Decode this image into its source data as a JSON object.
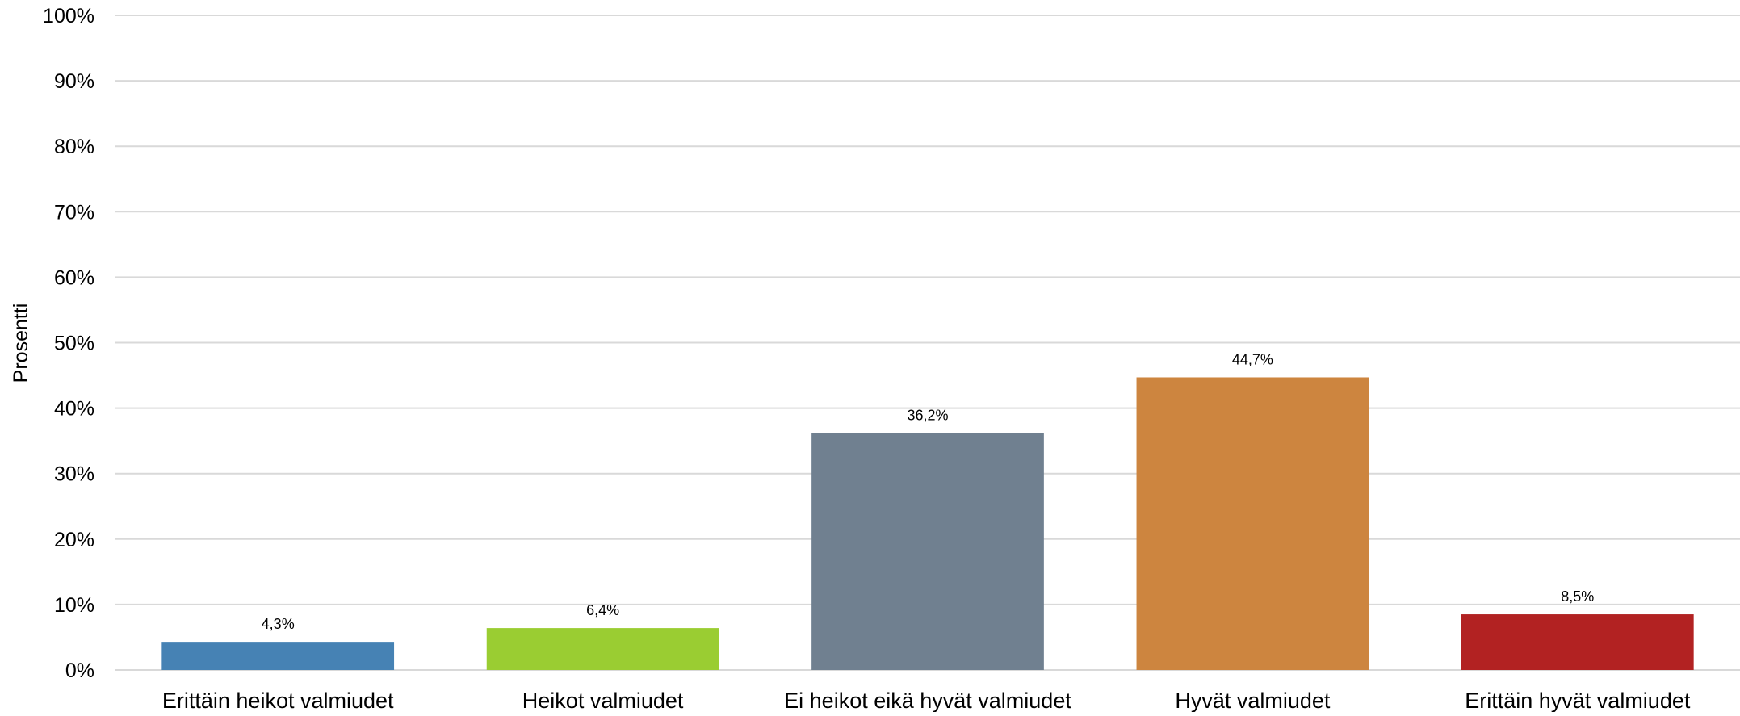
{
  "chart_data": {
    "type": "bar",
    "title": "",
    "xlabel": "",
    "ylabel": "Prosentti",
    "ylim": [
      0,
      100
    ],
    "yticks": [
      0,
      10,
      20,
      30,
      40,
      50,
      60,
      70,
      80,
      90,
      100
    ],
    "ytick_labels": [
      "0%",
      "10%",
      "20%",
      "30%",
      "40%",
      "50%",
      "60%",
      "70%",
      "80%",
      "90%",
      "100%"
    ],
    "grid": true,
    "legend": "none",
    "categories": [
      "Erittäin heikot valmiudet",
      "Heikot valmiudet",
      "Ei heikot eikä hyvät valmiudet",
      "Hyvät valmiudet",
      "Erittäin hyvät valmiudet"
    ],
    "values": [
      4.3,
      6.4,
      36.2,
      44.7,
      8.5
    ],
    "data_labels": [
      "4,3%",
      "6,4%",
      "36,2%",
      "44,7%",
      "8,5%"
    ],
    "colors": [
      "#4682b4",
      "#9acd32",
      "#708090",
      "#cd853f",
      "#b22222"
    ]
  }
}
